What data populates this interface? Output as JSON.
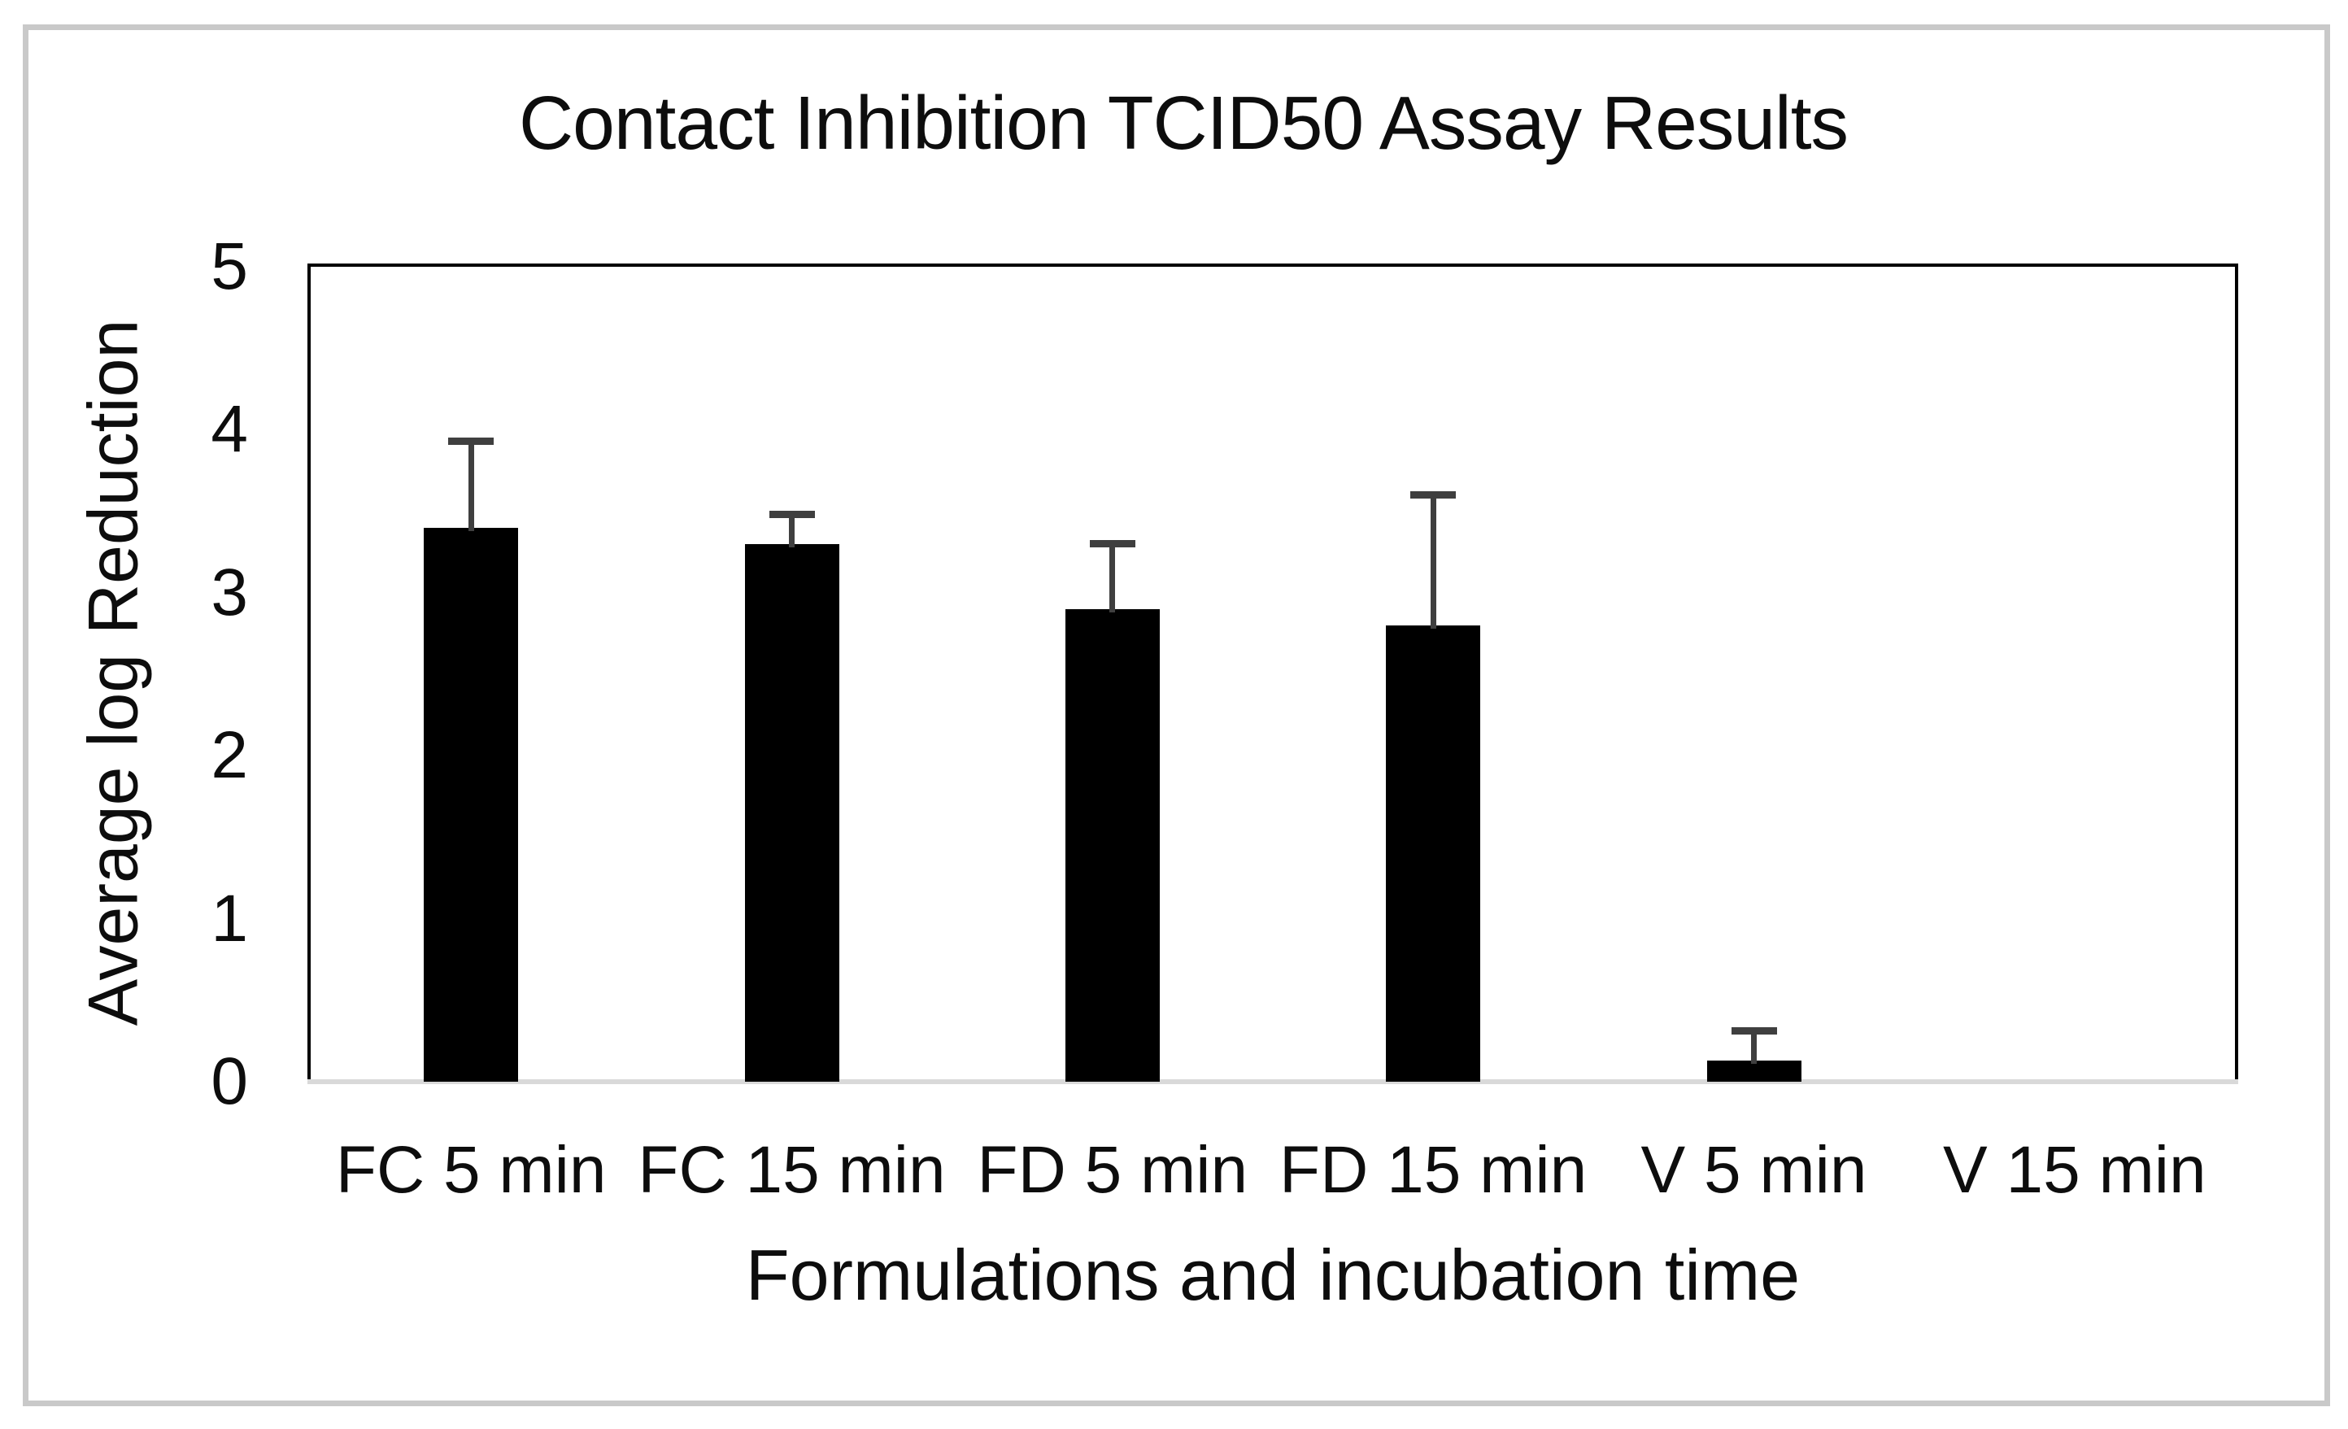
{
  "figure": {
    "background_color": "#ffffff",
    "border_color": "#c9c9c9"
  },
  "chart_data": {
    "type": "bar",
    "title": "Contact Inhibition TCID50 Assay Results",
    "xlabel": "Formulations and incubation time",
    "ylabel": "Average log Reduction",
    "categories": [
      "FC 5 min",
      "FC 15 min",
      "FD 5 min",
      "FD 15 min",
      "V 5 min",
      "V 15 min"
    ],
    "values": [
      3.4,
      3.3,
      2.9,
      2.8,
      0.13,
      0
    ],
    "error_up": [
      0.53,
      0.18,
      0.4,
      0.8,
      0.18,
      0
    ],
    "ylim": [
      0,
      5
    ],
    "yticks": [
      "0",
      "1",
      "2",
      "3",
      "4",
      "5"
    ],
    "grid": false,
    "legend": false,
    "bar_color": "#000000",
    "error_color": "#3f3f3f",
    "axis_frame_color": "#000000",
    "baseline_color": "#d9d9d9"
  }
}
